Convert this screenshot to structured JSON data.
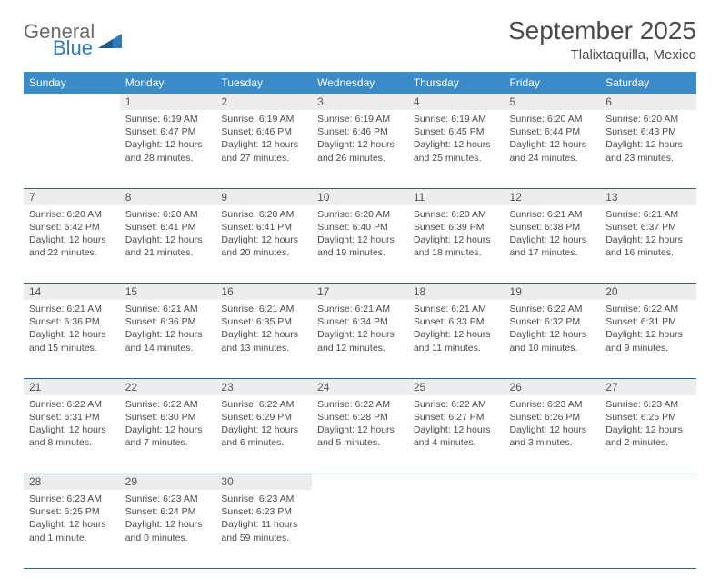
{
  "brand": {
    "line1": "General",
    "line2": "Blue"
  },
  "title": "September 2025",
  "location": "Tlalixtaquilla, Mexico",
  "colors": {
    "header_bg": "#3b8bc8",
    "header_text": "#ffffff",
    "daynum_bg": "#eceded",
    "rule": "#2f5c88",
    "body_text": "#4a4a4a",
    "logo_gray": "#6b6b6b",
    "logo_blue": "#2f7bbf"
  },
  "day_headers": [
    "Sunday",
    "Monday",
    "Tuesday",
    "Wednesday",
    "Thursday",
    "Friday",
    "Saturday"
  ],
  "weeks": [
    {
      "nums": [
        "",
        "1",
        "2",
        "3",
        "4",
        "5",
        "6"
      ],
      "cells": [
        null,
        {
          "sunrise": "Sunrise: 6:19 AM",
          "sunset": "Sunset: 6:47 PM",
          "daylight": "Daylight: 12 hours and 28 minutes."
        },
        {
          "sunrise": "Sunrise: 6:19 AM",
          "sunset": "Sunset: 6:46 PM",
          "daylight": "Daylight: 12 hours and 27 minutes."
        },
        {
          "sunrise": "Sunrise: 6:19 AM",
          "sunset": "Sunset: 6:46 PM",
          "daylight": "Daylight: 12 hours and 26 minutes."
        },
        {
          "sunrise": "Sunrise: 6:19 AM",
          "sunset": "Sunset: 6:45 PM",
          "daylight": "Daylight: 12 hours and 25 minutes."
        },
        {
          "sunrise": "Sunrise: 6:20 AM",
          "sunset": "Sunset: 6:44 PM",
          "daylight": "Daylight: 12 hours and 24 minutes."
        },
        {
          "sunrise": "Sunrise: 6:20 AM",
          "sunset": "Sunset: 6:43 PM",
          "daylight": "Daylight: 12 hours and 23 minutes."
        }
      ]
    },
    {
      "nums": [
        "7",
        "8",
        "9",
        "10",
        "11",
        "12",
        "13"
      ],
      "cells": [
        {
          "sunrise": "Sunrise: 6:20 AM",
          "sunset": "Sunset: 6:42 PM",
          "daylight": "Daylight: 12 hours and 22 minutes."
        },
        {
          "sunrise": "Sunrise: 6:20 AM",
          "sunset": "Sunset: 6:41 PM",
          "daylight": "Daylight: 12 hours and 21 minutes."
        },
        {
          "sunrise": "Sunrise: 6:20 AM",
          "sunset": "Sunset: 6:41 PM",
          "daylight": "Daylight: 12 hours and 20 minutes."
        },
        {
          "sunrise": "Sunrise: 6:20 AM",
          "sunset": "Sunset: 6:40 PM",
          "daylight": "Daylight: 12 hours and 19 minutes."
        },
        {
          "sunrise": "Sunrise: 6:20 AM",
          "sunset": "Sunset: 6:39 PM",
          "daylight": "Daylight: 12 hours and 18 minutes."
        },
        {
          "sunrise": "Sunrise: 6:21 AM",
          "sunset": "Sunset: 6:38 PM",
          "daylight": "Daylight: 12 hours and 17 minutes."
        },
        {
          "sunrise": "Sunrise: 6:21 AM",
          "sunset": "Sunset: 6:37 PM",
          "daylight": "Daylight: 12 hours and 16 minutes."
        }
      ]
    },
    {
      "nums": [
        "14",
        "15",
        "16",
        "17",
        "18",
        "19",
        "20"
      ],
      "cells": [
        {
          "sunrise": "Sunrise: 6:21 AM",
          "sunset": "Sunset: 6:36 PM",
          "daylight": "Daylight: 12 hours and 15 minutes."
        },
        {
          "sunrise": "Sunrise: 6:21 AM",
          "sunset": "Sunset: 6:36 PM",
          "daylight": "Daylight: 12 hours and 14 minutes."
        },
        {
          "sunrise": "Sunrise: 6:21 AM",
          "sunset": "Sunset: 6:35 PM",
          "daylight": "Daylight: 12 hours and 13 minutes."
        },
        {
          "sunrise": "Sunrise: 6:21 AM",
          "sunset": "Sunset: 6:34 PM",
          "daylight": "Daylight: 12 hours and 12 minutes."
        },
        {
          "sunrise": "Sunrise: 6:21 AM",
          "sunset": "Sunset: 6:33 PM",
          "daylight": "Daylight: 12 hours and 11 minutes."
        },
        {
          "sunrise": "Sunrise: 6:22 AM",
          "sunset": "Sunset: 6:32 PM",
          "daylight": "Daylight: 12 hours and 10 minutes."
        },
        {
          "sunrise": "Sunrise: 6:22 AM",
          "sunset": "Sunset: 6:31 PM",
          "daylight": "Daylight: 12 hours and 9 minutes."
        }
      ]
    },
    {
      "nums": [
        "21",
        "22",
        "23",
        "24",
        "25",
        "26",
        "27"
      ],
      "cells": [
        {
          "sunrise": "Sunrise: 6:22 AM",
          "sunset": "Sunset: 6:31 PM",
          "daylight": "Daylight: 12 hours and 8 minutes."
        },
        {
          "sunrise": "Sunrise: 6:22 AM",
          "sunset": "Sunset: 6:30 PM",
          "daylight": "Daylight: 12 hours and 7 minutes."
        },
        {
          "sunrise": "Sunrise: 6:22 AM",
          "sunset": "Sunset: 6:29 PM",
          "daylight": "Daylight: 12 hours and 6 minutes."
        },
        {
          "sunrise": "Sunrise: 6:22 AM",
          "sunset": "Sunset: 6:28 PM",
          "daylight": "Daylight: 12 hours and 5 minutes."
        },
        {
          "sunrise": "Sunrise: 6:22 AM",
          "sunset": "Sunset: 6:27 PM",
          "daylight": "Daylight: 12 hours and 4 minutes."
        },
        {
          "sunrise": "Sunrise: 6:23 AM",
          "sunset": "Sunset: 6:26 PM",
          "daylight": "Daylight: 12 hours and 3 minutes."
        },
        {
          "sunrise": "Sunrise: 6:23 AM",
          "sunset": "Sunset: 6:25 PM",
          "daylight": "Daylight: 12 hours and 2 minutes."
        }
      ]
    },
    {
      "nums": [
        "28",
        "29",
        "30",
        "",
        "",
        "",
        ""
      ],
      "cells": [
        {
          "sunrise": "Sunrise: 6:23 AM",
          "sunset": "Sunset: 6:25 PM",
          "daylight": "Daylight: 12 hours and 1 minute."
        },
        {
          "sunrise": "Sunrise: 6:23 AM",
          "sunset": "Sunset: 6:24 PM",
          "daylight": "Daylight: 12 hours and 0 minutes."
        },
        {
          "sunrise": "Sunrise: 6:23 AM",
          "sunset": "Sunset: 6:23 PM",
          "daylight": "Daylight: 11 hours and 59 minutes."
        },
        null,
        null,
        null,
        null
      ]
    }
  ]
}
